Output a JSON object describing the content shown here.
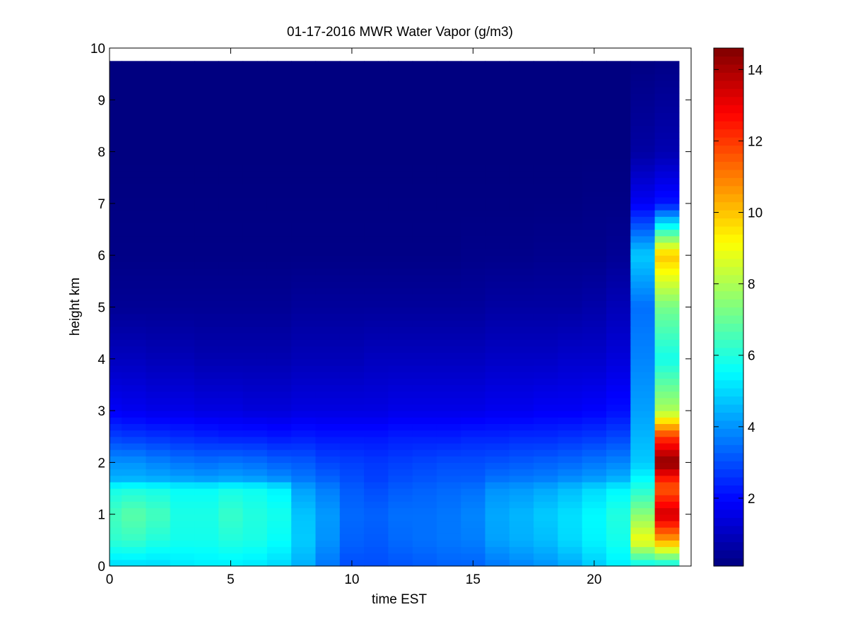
{
  "chart_data": {
    "type": "heatmap",
    "title": "01-17-2016 MWR Water Vapor (g/m3)",
    "xlabel": "time EST",
    "ylabel": "height km",
    "xlim": [
      0,
      24
    ],
    "ylim": [
      0,
      10
    ],
    "x_ticks": [
      0,
      5,
      10,
      15,
      20
    ],
    "y_ticks": [
      0,
      1,
      2,
      3,
      4,
      5,
      6,
      7,
      8,
      9,
      10
    ],
    "data_extent_x": [
      0,
      23.5
    ],
    "data_extent_y": [
      0,
      9.75
    ],
    "colorbar": {
      "colormap": "jet",
      "range": [
        0.1,
        14.6
      ],
      "ticks": [
        2,
        4,
        6,
        8,
        10,
        12,
        14
      ]
    },
    "grid": false,
    "legend": "none",
    "hours": [
      0.5,
      1.5,
      2.5,
      3.5,
      4.5,
      5.5,
      6.5,
      7.5,
      8.5,
      9.5,
      10.5,
      11.5,
      12.5,
      13.5,
      14.5,
      15.5,
      16.5,
      17.5,
      18.5,
      19.5,
      20.5,
      21.5,
      22.5,
      23.5
    ],
    "profiles": {
      "heights_km": [
        0,
        0.5,
        1.0,
        1.5,
        1.7,
        2.0,
        2.5,
        3.0,
        4.0,
        5.0,
        6.0,
        7.0,
        8.0,
        9.75
      ],
      "by_hour": [
        [
          5.0,
          6.2,
          6.5,
          5.8,
          4.4,
          4.0,
          2.8,
          1.8,
          1.0,
          0.4,
          0.2,
          0.15,
          0.1,
          0.1
        ],
        [
          5.0,
          6.3,
          6.8,
          5.9,
          4.4,
          4.0,
          2.7,
          1.7,
          1.0,
          0.4,
          0.2,
          0.15,
          0.1,
          0.1
        ],
        [
          5.0,
          6.0,
          6.5,
          5.8,
          4.3,
          3.8,
          2.6,
          1.6,
          0.9,
          0.4,
          0.2,
          0.15,
          0.1,
          0.1
        ],
        [
          5.2,
          5.8,
          5.9,
          5.6,
          4.2,
          3.6,
          2.5,
          1.6,
          0.9,
          0.4,
          0.2,
          0.15,
          0.1,
          0.1
        ],
        [
          5.3,
          5.8,
          5.9,
          5.6,
          4.1,
          3.5,
          2.4,
          1.5,
          0.8,
          0.4,
          0.2,
          0.15,
          0.1,
          0.1
        ],
        [
          5.3,
          6.0,
          6.3,
          5.8,
          4.2,
          3.6,
          2.3,
          1.5,
          0.8,
          0.4,
          0.2,
          0.15,
          0.1,
          0.1
        ],
        [
          5.2,
          5.9,
          6.0,
          5.7,
          4.1,
          3.5,
          2.3,
          1.4,
          0.8,
          0.4,
          0.2,
          0.15,
          0.1,
          0.1
        ],
        [
          5.0,
          5.6,
          5.8,
          5.4,
          3.9,
          3.3,
          2.2,
          1.4,
          0.8,
          0.4,
          0.2,
          0.15,
          0.1,
          0.1
        ],
        [
          4.4,
          4.8,
          4.7,
          4.2,
          3.6,
          3.2,
          2.3,
          1.5,
          0.9,
          0.5,
          0.2,
          0.15,
          0.1,
          0.1
        ],
        [
          3.6,
          4.0,
          4.1,
          3.7,
          3.3,
          2.9,
          2.2,
          1.5,
          0.9,
          0.5,
          0.2,
          0.15,
          0.1,
          0.1
        ],
        [
          3.0,
          3.3,
          3.4,
          3.2,
          3.0,
          2.8,
          2.2,
          1.5,
          0.9,
          0.5,
          0.2,
          0.15,
          0.1,
          0.1
        ],
        [
          3.0,
          3.2,
          3.3,
          3.0,
          2.8,
          2.7,
          2.2,
          1.5,
          1.0,
          0.5,
          0.2,
          0.15,
          0.1,
          0.1
        ],
        [
          3.1,
          3.4,
          3.5,
          3.2,
          3.0,
          2.8,
          2.3,
          1.6,
          1.0,
          0.5,
          0.2,
          0.15,
          0.1,
          0.1
        ],
        [
          3.2,
          3.5,
          3.5,
          3.3,
          3.1,
          2.9,
          2.3,
          1.6,
          1.0,
          0.5,
          0.2,
          0.15,
          0.1,
          0.1
        ],
        [
          3.3,
          3.6,
          3.6,
          3.4,
          3.2,
          3.0,
          2.3,
          1.6,
          1.0,
          0.5,
          0.2,
          0.15,
          0.1,
          0.1
        ],
        [
          3.3,
          3.7,
          3.8,
          3.5,
          3.2,
          3.0,
          2.4,
          1.6,
          1.0,
          0.5,
          0.25,
          0.15,
          0.1,
          0.1
        ],
        [
          3.6,
          4.2,
          4.3,
          4.0,
          3.5,
          3.1,
          2.4,
          1.7,
          1.1,
          0.6,
          0.25,
          0.15,
          0.1,
          0.1
        ],
        [
          3.8,
          4.4,
          4.5,
          4.1,
          3.6,
          3.2,
          2.5,
          1.7,
          1.1,
          0.6,
          0.25,
          0.15,
          0.1,
          0.1
        ],
        [
          4.0,
          4.6,
          4.8,
          4.3,
          3.7,
          3.3,
          2.5,
          1.8,
          1.1,
          0.6,
          0.3,
          0.15,
          0.1,
          0.1
        ],
        [
          4.3,
          5.0,
          5.1,
          4.6,
          3.9,
          3.4,
          2.6,
          1.8,
          1.2,
          0.6,
          0.3,
          0.15,
          0.1,
          0.1
        ],
        [
          4.8,
          5.4,
          5.5,
          5.0,
          4.1,
          3.6,
          2.7,
          1.9,
          1.2,
          0.7,
          0.3,
          0.2,
          0.1,
          0.1
        ],
        [
          5.3,
          5.8,
          6.0,
          5.4,
          4.4,
          3.8,
          2.9,
          2.1,
          1.4,
          0.9,
          0.4,
          0.2,
          0.1,
          0.1
        ],
        [
          5.5,
          9.0,
          7.5,
          6.0,
          5.5,
          4.8,
          4.5,
          4.2,
          3.8,
          3.5,
          4.8,
          1.8,
          0.6,
          0.15
        ],
        [
          5.5,
          10.5,
          13.5,
          11.5,
          12.5,
          14.5,
          12.0,
          8.0,
          5.8,
          7.2,
          10.0,
          2.2,
          0.8,
          0.2
        ]
      ]
    }
  }
}
